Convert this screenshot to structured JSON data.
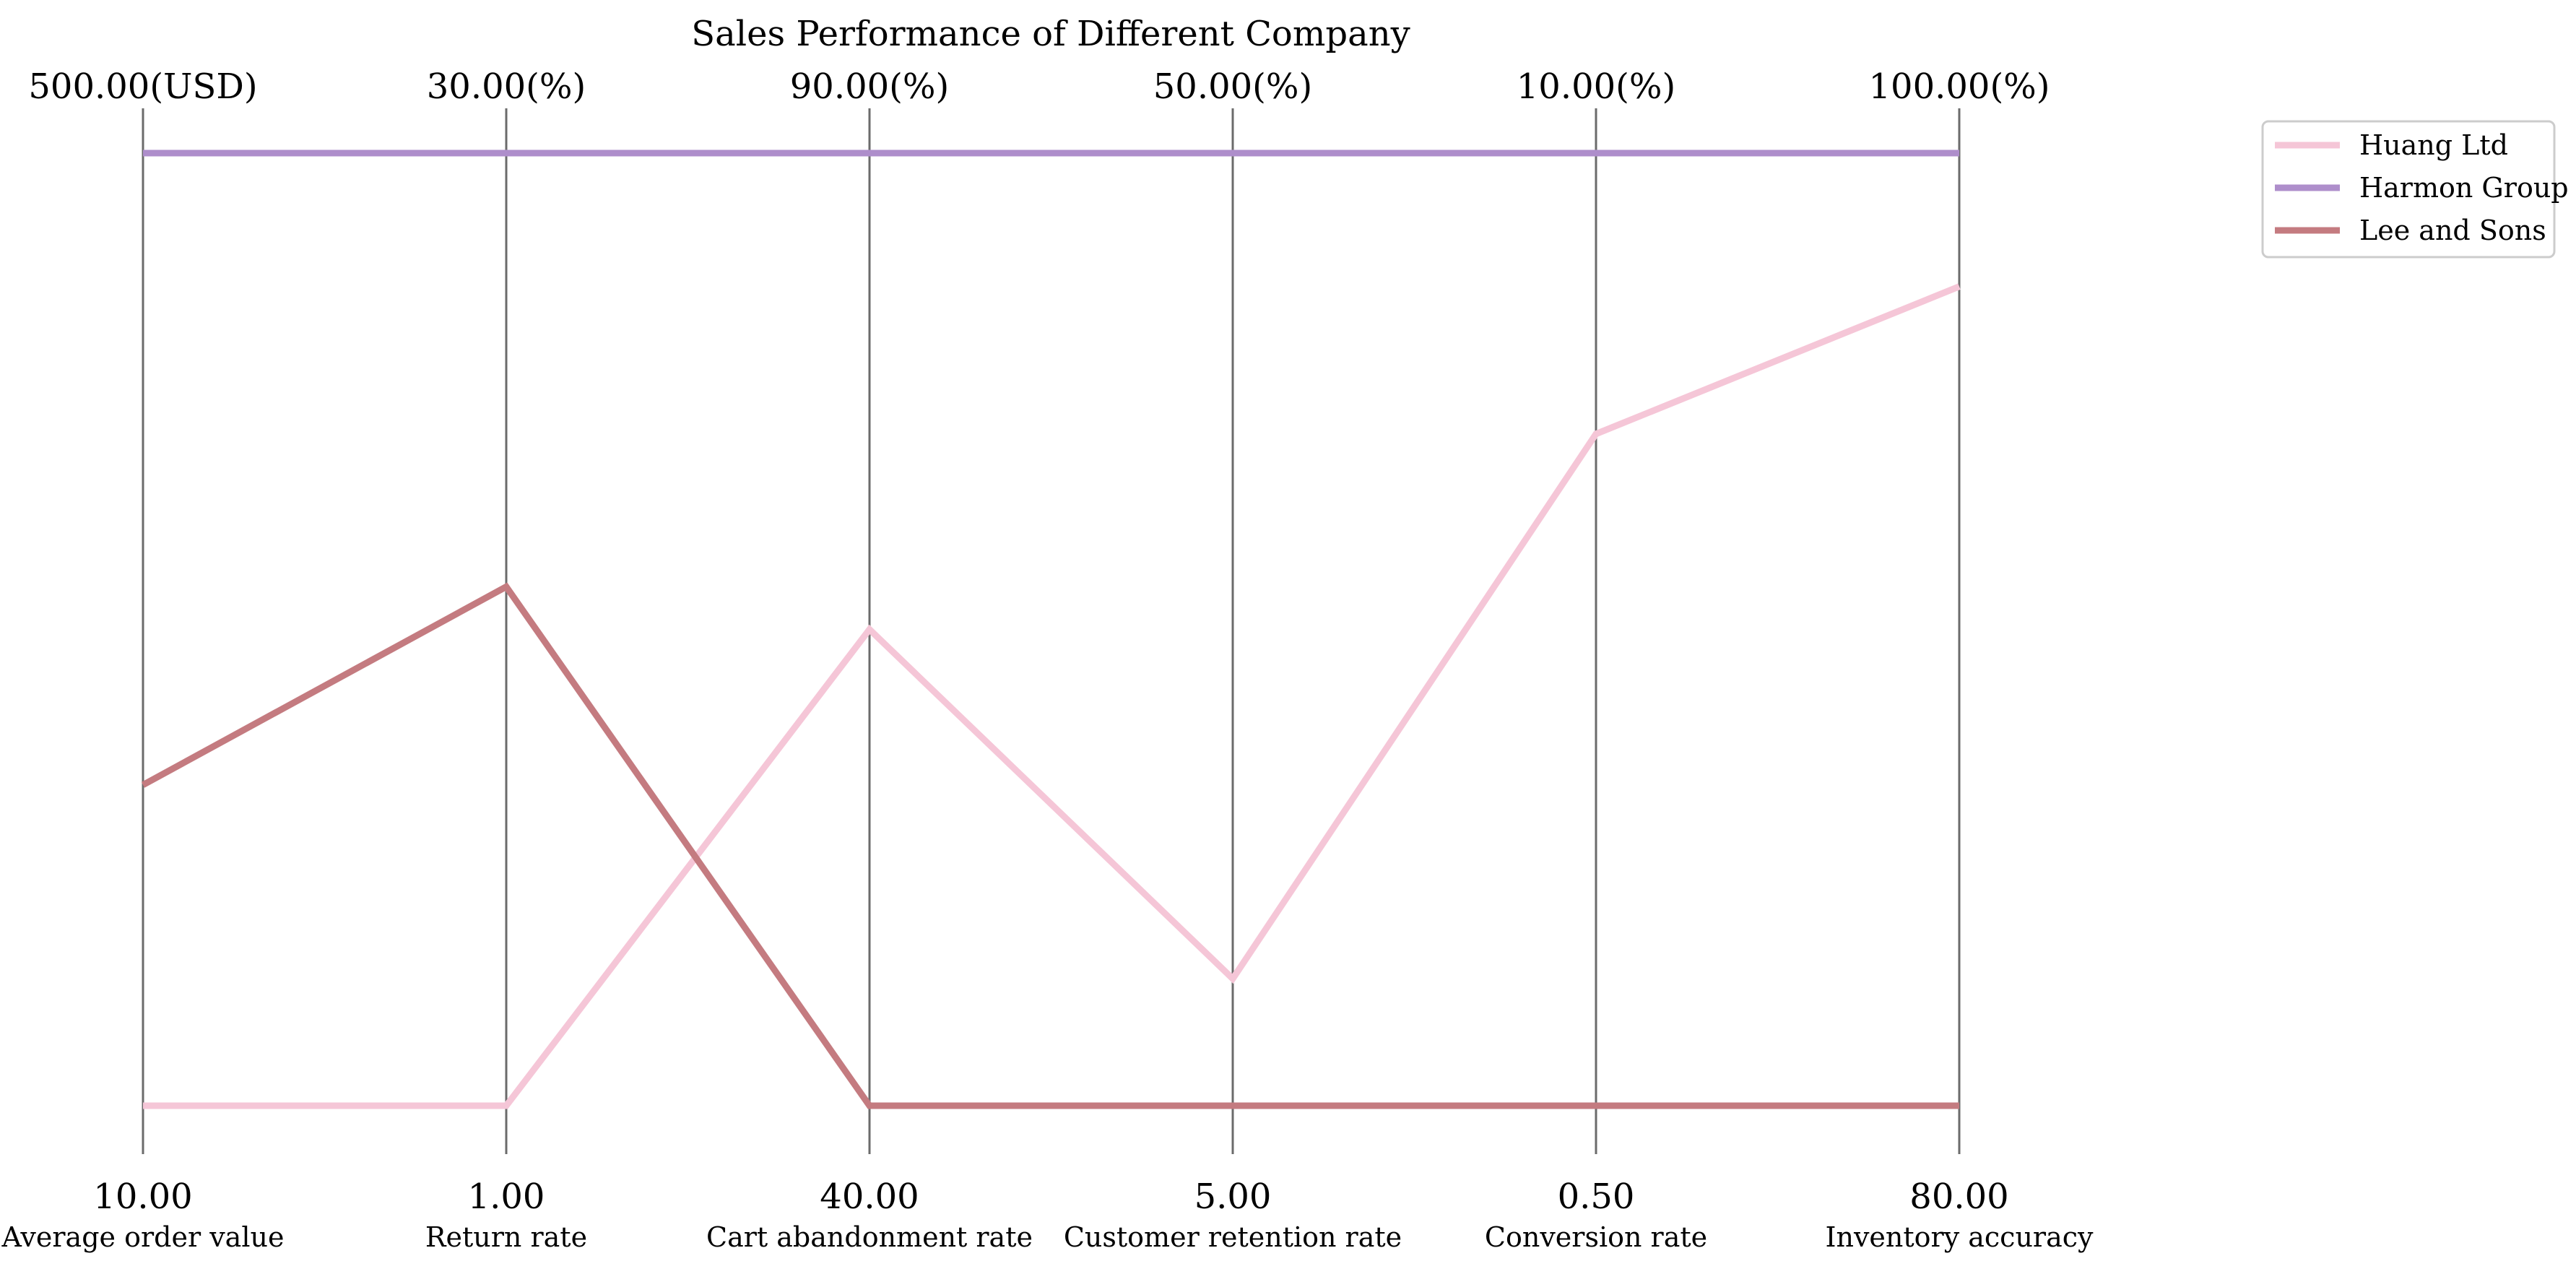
{
  "chart_data": {
    "type": "parallel_coordinates",
    "title": "Sales Performance of Different Company",
    "axes": [
      {
        "label": "Average order value",
        "min": 10.0,
        "max": 500.0,
        "min_label": "10.00",
        "max_label": "500.00(USD)"
      },
      {
        "label": "Return rate",
        "min": 1.0,
        "max": 30.0,
        "min_label": "1.00",
        "max_label": "30.00(%)"
      },
      {
        "label": "Cart abandonment rate",
        "min": 40.0,
        "max": 90.0,
        "min_label": "40.00",
        "max_label": "90.00(%)"
      },
      {
        "label": "Customer retention rate",
        "min": 5.0,
        "max": 50.0,
        "min_label": "5.00",
        "max_label": "50.00(%)"
      },
      {
        "label": "Conversion rate",
        "min": 0.5,
        "max": 10.0,
        "min_label": "0.50",
        "max_label": "10.00(%)"
      },
      {
        "label": "Inventory accuracy",
        "min": 80.0,
        "max": 100.0,
        "min_label": "80.00",
        "max_label": "100.00(%)"
      }
    ],
    "series": [
      {
        "name": "Huang Ltd",
        "color": "#f5c6d7",
        "values": [
          10.0,
          1.0,
          65.0,
          11.0,
          7.2,
          97.2
        ]
      },
      {
        "name": "Harmon Group",
        "color": "#ae8ecb",
        "values": [
          500.0,
          30.0,
          90.0,
          50.0,
          10.0,
          100.0
        ]
      },
      {
        "name": "Lee and Sons",
        "color": "#c47b80",
        "values": [
          175.0,
          16.8,
          40.0,
          5.0,
          0.5,
          80.0
        ]
      }
    ],
    "legend_position": "top-right"
  }
}
